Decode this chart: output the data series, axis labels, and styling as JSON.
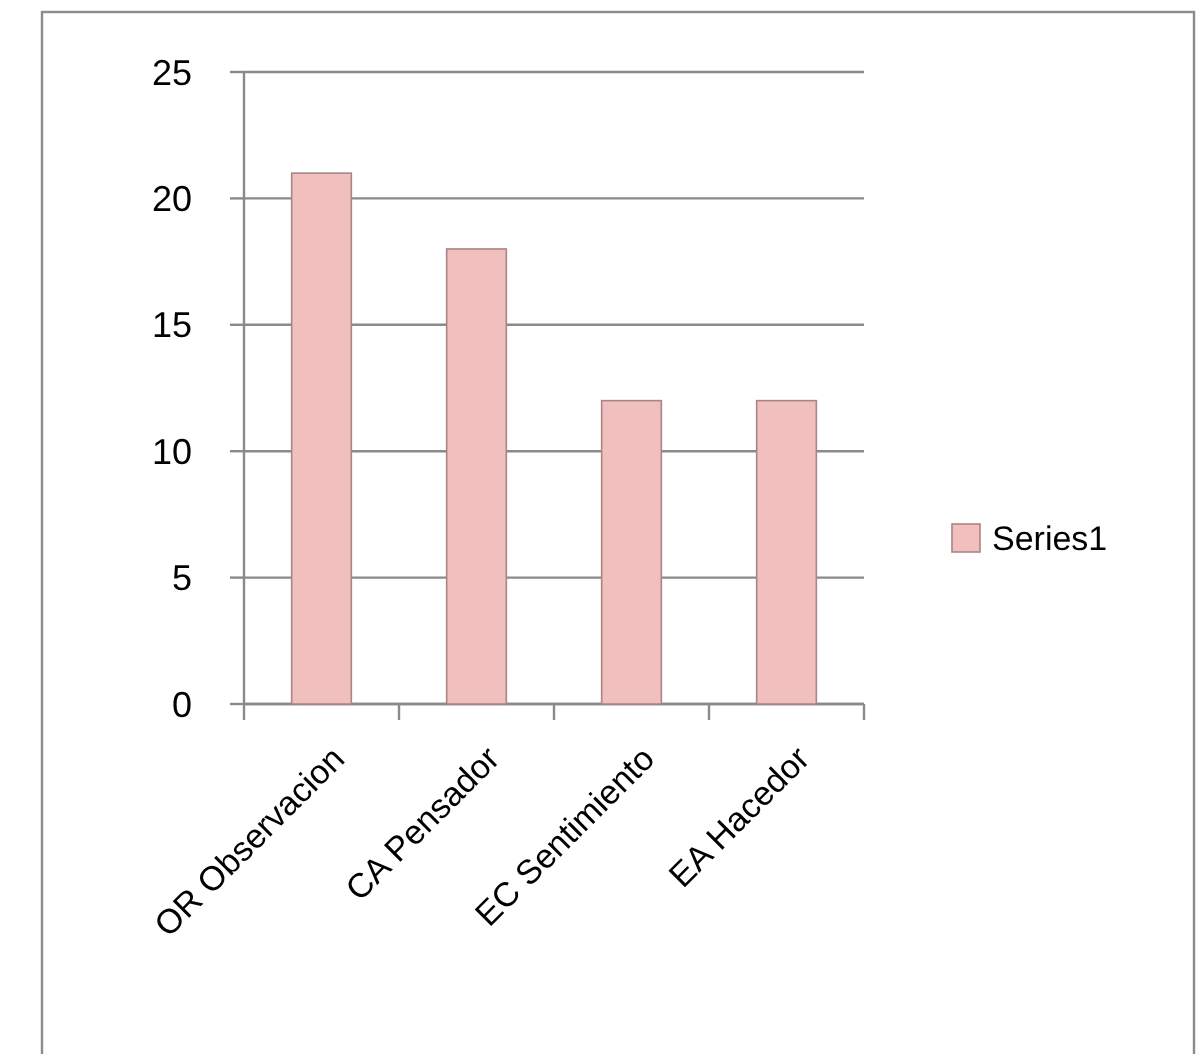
{
  "chart_data": {
    "type": "bar",
    "categories": [
      "OR Observacion",
      "CA Pensador",
      "EC Sentimiento",
      "EA Hacedor"
    ],
    "series": [
      {
        "name": "Series1",
        "color": "#f2bfbf",
        "values": [
          21,
          18,
          12,
          12
        ]
      }
    ],
    "ylim": [
      0,
      25
    ],
    "yticks": [
      0,
      5,
      10,
      15,
      20,
      25
    ],
    "grid": "y",
    "legend": "right"
  }
}
